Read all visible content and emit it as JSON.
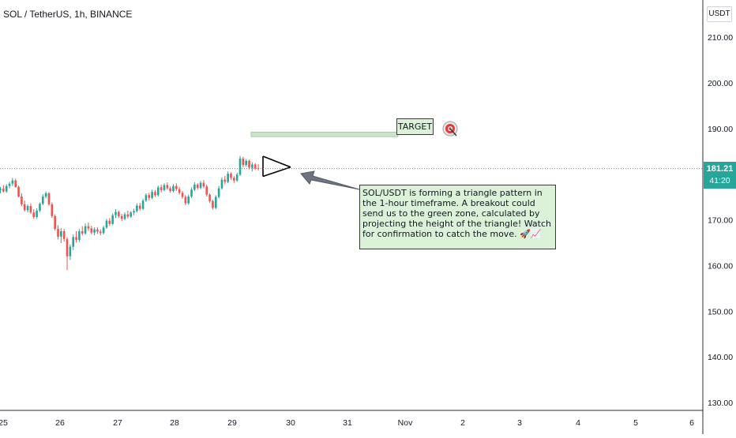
{
  "header": {
    "symbol_title": "SOL / TetherUS, 1h, BINANCE"
  },
  "price_axis": {
    "unit": "USDT",
    "current_price": "181.21",
    "countdown": "41:20"
  },
  "annotation": {
    "callout_text": "SOL/USDT is forming a triangle pattern in the 1-hour timeframe. A breakout could send us to the green zone, calculated by projecting the height of  the triangle! Watch for confirmation to catch the move. 🚀📈",
    "target_label": "TARGET",
    "icons": [
      "rocket-icon",
      "chart-up-icon",
      "bullseye-icon",
      "arrow-left-icon"
    ]
  },
  "colors": {
    "up": "#26a69a",
    "down": "#ef5350",
    "zone": "#c8e6c9",
    "callout_bg": "#dcf2d8",
    "price_line": "#26a69a",
    "axis_text": "#131722"
  },
  "chart_data": {
    "type": "candlestick",
    "title": "SOL / TetherUS, 1h, BINANCE",
    "interval": "1h",
    "y_axis": {
      "unit": "USDT",
      "range": [
        128,
        216
      ],
      "position": "right",
      "ticks": [
        "210.00",
        "200.00",
        "190.00",
        "180.00",
        "170.00",
        "160.00",
        "150.00",
        "140.00",
        "130.00"
      ]
    },
    "x_axis": {
      "ticks": [
        "25",
        "26",
        "27",
        "28",
        "29",
        "30",
        "31",
        "Nov",
        "2",
        "3",
        "4",
        "5",
        "6"
      ]
    },
    "grid": false,
    "current_price": 181.21,
    "target_zone": {
      "low": 188.2,
      "high": 189.2
    },
    "triangle": {
      "apex_day": "30",
      "high": 183.9,
      "low": 179.5
    },
    "series": [
      {
        "ohlc": [
          [
            176.5,
            177.2,
            175.8,
            176.8
          ],
          [
            176.8,
            177.6,
            176.0,
            176.2
          ],
          [
            176.2,
            177.8,
            175.9,
            177.4
          ],
          [
            177.4,
            178.3,
            176.9,
            177.9
          ],
          [
            177.9,
            179.2,
            177.4,
            178.6
          ],
          [
            178.6,
            179.0,
            177.0,
            177.2
          ],
          [
            177.2,
            177.5,
            174.9,
            175.1
          ],
          [
            175.1,
            175.8,
            173.0,
            173.4
          ],
          [
            173.4,
            174.2,
            171.8,
            172.1
          ],
          [
            172.1,
            173.4,
            171.6,
            173.0
          ],
          [
            173.0,
            173.6,
            171.3,
            171.6
          ],
          [
            171.6,
            172.3,
            170.2,
            170.6
          ],
          [
            170.6,
            172.5,
            170.2,
            172.0
          ],
          [
            172.0,
            173.8,
            171.7,
            173.5
          ],
          [
            173.5,
            175.6,
            173.2,
            175.1
          ],
          [
            175.1,
            176.2,
            174.7,
            175.8
          ],
          [
            175.8,
            176.1,
            173.1,
            173.4
          ],
          [
            173.4,
            173.8,
            170.4,
            170.8
          ],
          [
            170.8,
            171.2,
            167.6,
            168.0
          ],
          [
            168.0,
            168.8,
            165.7,
            166.3
          ],
          [
            166.3,
            168.2,
            164.9,
            167.5
          ],
          [
            167.5,
            168.0,
            165.2,
            165.8
          ],
          [
            165.8,
            166.2,
            159.0,
            162.0
          ],
          [
            162.0,
            164.6,
            161.2,
            164.1
          ],
          [
            164.1,
            166.8,
            163.4,
            166.2
          ],
          [
            166.2,
            167.5,
            165.0,
            165.6
          ],
          [
            165.6,
            168.0,
            165.2,
            167.5
          ],
          [
            167.5,
            168.6,
            166.6,
            167.0
          ],
          [
            167.0,
            169.2,
            166.7,
            168.6
          ],
          [
            168.6,
            169.4,
            167.6,
            168.1
          ],
          [
            168.1,
            168.7,
            166.8,
            167.2
          ],
          [
            167.2,
            168.3,
            166.6,
            167.9
          ],
          [
            167.9,
            168.4,
            166.9,
            167.4
          ],
          [
            167.4,
            167.9,
            166.6,
            167.1
          ],
          [
            167.1,
            168.7,
            166.8,
            168.3
          ],
          [
            168.3,
            170.2,
            168.0,
            169.8
          ],
          [
            169.8,
            170.4,
            168.7,
            169.1
          ],
          [
            169.1,
            171.4,
            168.8,
            171.0
          ],
          [
            171.0,
            172.3,
            170.4,
            171.7
          ],
          [
            171.7,
            172.0,
            170.4,
            170.8
          ],
          [
            170.8,
            171.3,
            169.7,
            170.2
          ],
          [
            170.2,
            171.6,
            169.9,
            171.2
          ],
          [
            171.2,
            172.0,
            170.3,
            170.7
          ],
          [
            170.7,
            171.9,
            170.4,
            171.6
          ],
          [
            171.6,
            172.4,
            171.0,
            171.9
          ],
          [
            171.9,
            173.6,
            171.6,
            173.1
          ],
          [
            173.1,
            173.7,
            172.0,
            172.4
          ],
          [
            172.4,
            174.6,
            172.1,
            174.2
          ],
          [
            174.2,
            175.8,
            173.9,
            175.4
          ],
          [
            175.4,
            175.9,
            174.2,
            174.8
          ],
          [
            174.8,
            176.6,
            174.5,
            176.1
          ],
          [
            176.1,
            176.5,
            175.0,
            175.4
          ],
          [
            175.4,
            177.5,
            175.1,
            177.1
          ],
          [
            177.1,
            177.7,
            176.0,
            176.5
          ],
          [
            176.5,
            178.0,
            176.2,
            177.6
          ],
          [
            177.6,
            178.2,
            176.6,
            176.9
          ],
          [
            176.9,
            177.3,
            175.9,
            176.3
          ],
          [
            176.3,
            177.8,
            176.0,
            177.4
          ],
          [
            177.4,
            178.0,
            176.3,
            176.7
          ],
          [
            176.7,
            177.2,
            175.5,
            175.9
          ],
          [
            175.9,
            176.3,
            174.6,
            175.0
          ],
          [
            175.0,
            175.4,
            173.2,
            173.6
          ],
          [
            173.6,
            175.5,
            173.3,
            175.1
          ],
          [
            175.1,
            177.1,
            174.8,
            176.6
          ],
          [
            176.6,
            178.2,
            176.3,
            177.7
          ],
          [
            177.7,
            178.0,
            176.6,
            177.0
          ],
          [
            177.0,
            178.5,
            176.7,
            178.1
          ],
          [
            178.1,
            178.7,
            176.9,
            177.3
          ],
          [
            177.3,
            177.7,
            175.1,
            175.5
          ],
          [
            175.5,
            175.8,
            173.7,
            174.1
          ],
          [
            174.1,
            174.4,
            172.2,
            172.6
          ],
          [
            172.6,
            175.4,
            172.3,
            175.0
          ],
          [
            175.0,
            177.4,
            174.7,
            176.9
          ],
          [
            176.9,
            179.3,
            176.6,
            178.8
          ],
          [
            178.8,
            179.6,
            177.8,
            178.3
          ],
          [
            178.3,
            180.6,
            178.0,
            180.1
          ],
          [
            180.1,
            180.4,
            178.8,
            179.2
          ],
          [
            179.2,
            179.6,
            178.1,
            178.6
          ],
          [
            178.6,
            180.3,
            178.3,
            179.9
          ],
          [
            179.9,
            184.0,
            179.6,
            183.4
          ],
          [
            183.4,
            183.8,
            181.5,
            182.0
          ],
          [
            182.0,
            183.3,
            181.6,
            182.9
          ],
          [
            182.9,
            183.2,
            181.0,
            181.4
          ],
          [
            181.4,
            182.6,
            180.6,
            182.1
          ],
          [
            182.1,
            182.4,
            180.9,
            181.3
          ],
          [
            181.3,
            182.2,
            180.8,
            181.21
          ]
        ]
      }
    ]
  }
}
